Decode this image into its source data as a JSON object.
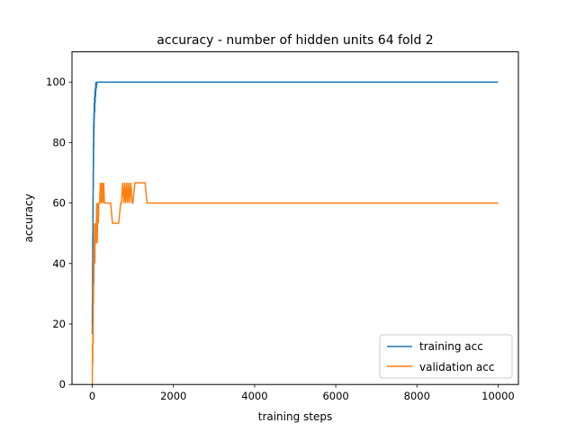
{
  "chart_data": {
    "type": "line",
    "title": "accuracy - number of hidden units 64 fold 2",
    "xlabel": "training steps",
    "ylabel": "accuracy",
    "xlim": [
      -500,
      10500
    ],
    "ylim": [
      0,
      110
    ],
    "xticks": [
      0,
      2000,
      4000,
      6000,
      8000,
      10000
    ],
    "yticks": [
      0,
      20,
      40,
      60,
      80,
      100
    ],
    "grid": false,
    "legend_position": "lower-right",
    "series": [
      {
        "name": "training acc",
        "color": "#1f77b4",
        "x": [
          0,
          3,
          5,
          8,
          10,
          12,
          15,
          18,
          20,
          22,
          25,
          28,
          30,
          33,
          35,
          38,
          40,
          42,
          45,
          48,
          50,
          55,
          60,
          65,
          70,
          75,
          80,
          85,
          90,
          95,
          100,
          105,
          110,
          120,
          130,
          150,
          200,
          500,
          1000,
          2000,
          4000,
          6000,
          8000,
          10000
        ],
        "y": [
          16.7,
          27,
          20,
          40,
          33,
          50,
          45,
          63,
          55,
          70,
          65,
          80,
          72,
          86,
          78,
          88,
          82,
          90,
          85,
          93,
          88,
          95,
          90,
          97,
          93,
          98,
          95,
          100,
          97,
          100,
          98,
          100,
          99,
          100,
          100,
          100,
          100,
          100,
          100,
          100,
          100,
          100,
          100,
          100
        ]
      },
      {
        "name": "validation acc",
        "color": "#ff7f0e",
        "x": [
          0,
          5,
          10,
          15,
          20,
          25,
          30,
          35,
          40,
          45,
          50,
          55,
          60,
          65,
          70,
          75,
          80,
          85,
          90,
          95,
          100,
          110,
          120,
          130,
          140,
          150,
          160,
          180,
          200,
          220,
          240,
          260,
          280,
          300,
          320,
          350,
          400,
          450,
          500,
          550,
          600,
          650,
          700,
          720,
          750,
          780,
          800,
          820,
          850,
          870,
          900,
          920,
          950,
          980,
          1000,
          1050,
          1100,
          1200,
          1300,
          1350,
          2000,
          4000,
          6000,
          8000,
          10000
        ],
        "y": [
          0,
          13.3,
          6.7,
          20,
          13.3,
          33.3,
          26.7,
          40,
          33.3,
          46.7,
          40,
          53.3,
          46.7,
          40,
          53.3,
          46.7,
          53.3,
          46.7,
          53.3,
          46.7,
          53.3,
          60,
          46.7,
          53.3,
          60,
          53.3,
          60,
          60,
          66.7,
          60,
          66.7,
          60,
          66.7,
          60,
          60,
          60,
          60,
          60,
          53.3,
          53.3,
          53.3,
          53.3,
          60,
          60,
          66.7,
          60,
          66.7,
          60,
          66.7,
          60,
          66.7,
          60,
          66.7,
          60,
          60,
          66.7,
          66.7,
          66.7,
          66.7,
          60,
          60,
          60,
          60,
          60,
          60
        ]
      }
    ]
  }
}
